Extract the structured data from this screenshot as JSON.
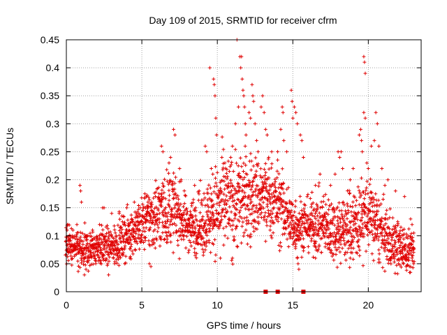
{
  "chart_data": {
    "type": "scatter",
    "title": "Day 109 of 2015, SRMTID for receiver cfrm",
    "xlabel": "GPS time / hours",
    "ylabel": "SRMTID / TECUs",
    "xlim": [
      0,
      23.5
    ],
    "ylim": [
      0,
      0.45
    ],
    "x_ticks": [
      0,
      5,
      10,
      15,
      20
    ],
    "x_tick_labels": [
      "0",
      "5",
      "10",
      "15",
      "20"
    ],
    "y_ticks": [
      0,
      0.05,
      0.1,
      0.15,
      0.2,
      0.25,
      0.3,
      0.35,
      0.4,
      0.45
    ],
    "y_tick_labels": [
      "0",
      "0.05",
      "0.1",
      "0.15",
      "0.2",
      "0.25",
      "0.3",
      "0.35",
      "0.4",
      "0.45"
    ],
    "grid": true,
    "marker": "plus",
    "color": "#e00000",
    "series": [
      {
        "name": "SRMTID",
        "envelope": {
          "hours": [
            0,
            1,
            2,
            3,
            4,
            5,
            6,
            7,
            8,
            9,
            10,
            11,
            12,
            13,
            14,
            15,
            16,
            17,
            18,
            19,
            20,
            21,
            22,
            23
          ],
          "median": [
            0.085,
            0.07,
            0.08,
            0.08,
            0.1,
            0.12,
            0.14,
            0.15,
            0.12,
            0.12,
            0.15,
            0.16,
            0.17,
            0.17,
            0.16,
            0.12,
            0.12,
            0.12,
            0.11,
            0.12,
            0.14,
            0.1,
            0.08,
            0.07
          ],
          "spread": [
            0.03,
            0.035,
            0.03,
            0.03,
            0.035,
            0.04,
            0.06,
            0.06,
            0.04,
            0.05,
            0.07,
            0.08,
            0.07,
            0.06,
            0.06,
            0.05,
            0.04,
            0.05,
            0.05,
            0.06,
            0.06,
            0.05,
            0.04,
            0.03
          ]
        },
        "points": [
          [
            0.9,
            0.19
          ],
          [
            0.95,
            0.18
          ],
          [
            1.0,
            0.16
          ],
          [
            2.4,
            0.15
          ],
          [
            2.5,
            0.15
          ],
          [
            2.2,
            0.12
          ],
          [
            3.0,
            0.14
          ],
          [
            3.5,
            0.14
          ],
          [
            4.0,
            0.15
          ],
          [
            4.5,
            0.16
          ],
          [
            4.8,
            0.14
          ],
          [
            5.2,
            0.175
          ],
          [
            5.3,
            0.17
          ],
          [
            6.3,
            0.26
          ],
          [
            6.4,
            0.25
          ],
          [
            6.8,
            0.23
          ],
          [
            6.9,
            0.24
          ],
          [
            7.1,
            0.29
          ],
          [
            7.2,
            0.28
          ],
          [
            7.5,
            0.22
          ],
          [
            7.6,
            0.2
          ],
          [
            8.5,
            0.19
          ],
          [
            8.8,
            0.18
          ],
          [
            9.2,
            0.26
          ],
          [
            9.3,
            0.25
          ],
          [
            9.6,
            0.22
          ],
          [
            9.7,
            0.21
          ],
          [
            9.75,
            0.38
          ],
          [
            9.8,
            0.37
          ],
          [
            9.85,
            0.35
          ],
          [
            9.9,
            0.31
          ],
          [
            9.95,
            0.28
          ],
          [
            9.5,
            0.4
          ],
          [
            10.3,
            0.24
          ],
          [
            10.5,
            0.23
          ],
          [
            11.0,
            0.26
          ],
          [
            11.2,
            0.3
          ],
          [
            11.3,
            0.45
          ],
          [
            11.4,
            0.33
          ],
          [
            11.5,
            0.42
          ],
          [
            11.55,
            0.4
          ],
          [
            11.6,
            0.42
          ],
          [
            11.65,
            0.38
          ],
          [
            11.7,
            0.36
          ],
          [
            11.75,
            0.35
          ],
          [
            11.8,
            0.33
          ],
          [
            11.85,
            0.3
          ],
          [
            11.9,
            0.28
          ],
          [
            12.1,
            0.32
          ],
          [
            12.2,
            0.31
          ],
          [
            12.3,
            0.37
          ],
          [
            12.35,
            0.35
          ],
          [
            12.4,
            0.34
          ],
          [
            12.5,
            0.3
          ],
          [
            12.6,
            0.27
          ],
          [
            12.7,
            0.25
          ],
          [
            12.9,
            0.33
          ],
          [
            13.0,
            0.35
          ],
          [
            13.1,
            0.32
          ],
          [
            13.2,
            0.29
          ],
          [
            13.3,
            0.28
          ],
          [
            13.4,
            0.24
          ],
          [
            13.6,
            0.25
          ],
          [
            14.0,
            0.25
          ],
          [
            14.2,
            0.29
          ],
          [
            14.3,
            0.33
          ],
          [
            14.35,
            0.32
          ],
          [
            14.4,
            0.27
          ],
          [
            14.6,
            0.25
          ],
          [
            14.9,
            0.36
          ],
          [
            14.95,
            0.34
          ],
          [
            15.0,
            0.31
          ],
          [
            15.1,
            0.33
          ],
          [
            15.2,
            0.32
          ],
          [
            15.3,
            0.3
          ],
          [
            15.5,
            0.28
          ],
          [
            15.6,
            0.27
          ],
          [
            15.7,
            0.24
          ],
          [
            13.2,
            0.09
          ],
          [
            13.5,
            0.11
          ],
          [
            15.1,
            0.09
          ],
          [
            15.2,
            0.085
          ],
          [
            15.3,
            0.06
          ],
          [
            15.35,
            0.05
          ],
          [
            15.4,
            0.04
          ],
          [
            16.5,
            0.19
          ],
          [
            16.8,
            0.21
          ],
          [
            17.5,
            0.19
          ],
          [
            17.8,
            0.21
          ],
          [
            18.0,
            0.25
          ],
          [
            18.1,
            0.24
          ],
          [
            18.2,
            0.25
          ],
          [
            18.3,
            0.22
          ],
          [
            18.8,
            0.2
          ],
          [
            19.0,
            0.22
          ],
          [
            19.4,
            0.28
          ],
          [
            19.5,
            0.29
          ],
          [
            19.55,
            0.27
          ],
          [
            19.6,
            0.25
          ],
          [
            19.7,
            0.42
          ],
          [
            19.75,
            0.41
          ],
          [
            19.8,
            0.39
          ],
          [
            19.7,
            0.32
          ],
          [
            19.8,
            0.31
          ],
          [
            19.9,
            0.23
          ],
          [
            20.0,
            0.22
          ],
          [
            20.2,
            0.26
          ],
          [
            20.4,
            0.27
          ],
          [
            20.5,
            0.32
          ],
          [
            20.6,
            0.3
          ],
          [
            20.7,
            0.26
          ],
          [
            20.9,
            0.22
          ],
          [
            21.1,
            0.19
          ],
          [
            21.3,
            0.2
          ],
          [
            21.8,
            0.18
          ],
          [
            22.4,
            0.17
          ],
          [
            22.8,
            0.13
          ],
          [
            22.9,
            0.12
          ],
          [
            18.6,
            0.07
          ],
          [
            18.8,
            0.06
          ],
          [
            19.2,
            0.07
          ],
          [
            21.5,
            0.06
          ],
          [
            22.0,
            0.05
          ],
          [
            22.5,
            0.045
          ],
          [
            23.0,
            0.05
          ],
          [
            0.1,
            0.12
          ],
          [
            0.05,
            0.11
          ],
          [
            1.2,
            0.03
          ],
          [
            1.3,
            0.04
          ],
          [
            2.8,
            0.03
          ],
          [
            3.2,
            0.05
          ],
          [
            4.2,
            0.06
          ],
          [
            5.5,
            0.05
          ],
          [
            5.6,
            0.045
          ],
          [
            8.5,
            0.07
          ],
          [
            10.2,
            0.06
          ],
          [
            11.0,
            0.06
          ],
          [
            12.2,
            0.08
          ],
          [
            12.0,
            0.085
          ],
          [
            16.5,
            0.06
          ],
          [
            17.5,
            0.07
          ]
        ],
        "baseline_markers_x": [
          13.2,
          14.0,
          15.7
        ]
      }
    ]
  }
}
